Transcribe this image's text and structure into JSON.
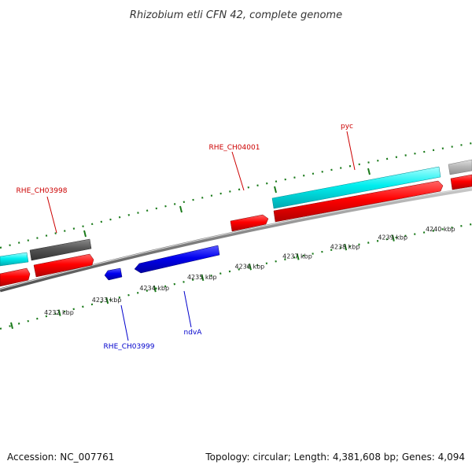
{
  "title": "Rhizobium etli CFN 42, complete genome",
  "footer": {
    "accession": "Accession: NC_007761",
    "summary": "Topology: circular; Length: 4,381,608 bp; Genes: 4,094"
  },
  "scale": {
    "ticks": [
      {
        "kbp": 4232,
        "label": "4232 kbp"
      },
      {
        "kbp": 4233,
        "label": "4233 kbp"
      },
      {
        "kbp": 4234,
        "label": "4234 kbp"
      },
      {
        "kbp": 4235,
        "label": "4235 kbp"
      },
      {
        "kbp": 4236,
        "label": "4236 kbp"
      },
      {
        "kbp": 4237,
        "label": "4237 kbp"
      },
      {
        "kbp": 4238,
        "label": "4238 kbp"
      },
      {
        "kbp": 4239,
        "label": "4239 kbp"
      },
      {
        "kbp": 4240,
        "label": "4240 kbp"
      }
    ]
  },
  "gene_labels": [
    {
      "id": "rhe-ch03998",
      "text": "RHE_CH03998",
      "color": "#cc0000"
    },
    {
      "id": "rhe-ch04001",
      "text": "RHE_CH04001",
      "color": "#cc0000"
    },
    {
      "id": "pyc",
      "text": "pyc",
      "color": "#cc0000"
    },
    {
      "id": "rhe-ch03999",
      "text": "RHE_CH03999",
      "color": "#0000cc"
    },
    {
      "id": "ndva",
      "text": "ndvA",
      "color": "#0000cc"
    }
  ],
  "colors": {
    "forward_cds": "#ff0000",
    "reverse_cds": "#0000ee",
    "gene_forward": "#00e5ee",
    "gene_other": "#555555",
    "gene_light": "#b0b0b0",
    "backbone": "#808080",
    "tick": "#1a7a1a"
  }
}
